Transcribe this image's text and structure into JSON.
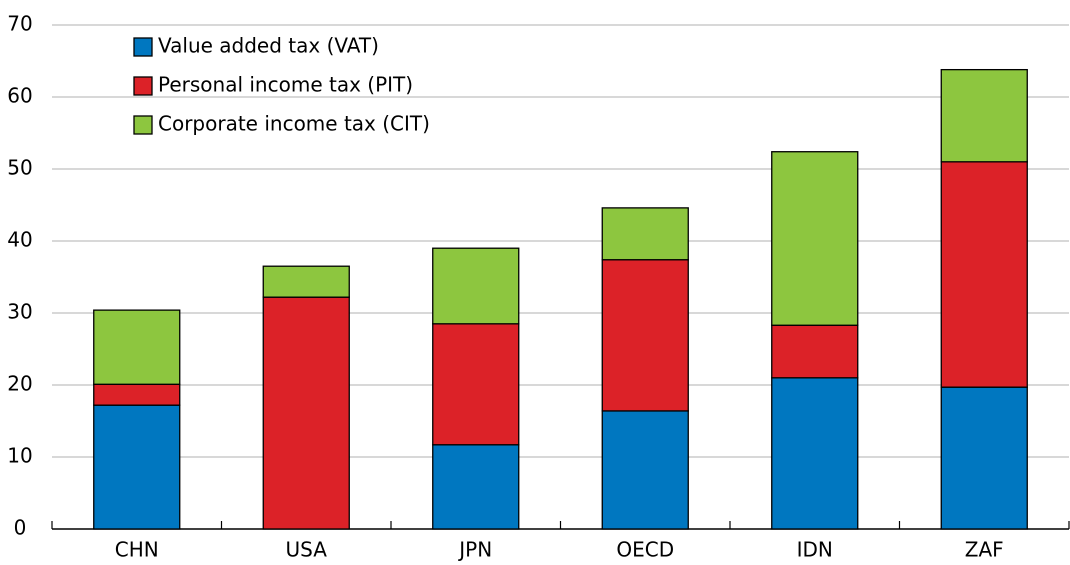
{
  "chart_data": {
    "type": "stacked_bar",
    "categories": [
      "CHN",
      "USA",
      "JPN",
      "OECD",
      "IDN",
      "ZAF"
    ],
    "series": [
      {
        "name": "Value added tax (VAT)",
        "color": "#0077c0",
        "values": [
          17.2,
          0,
          11.7,
          16.4,
          21.0,
          19.7
        ]
      },
      {
        "name": "Personal income tax (PIT)",
        "color": "#dc2228",
        "values": [
          2.9,
          32.2,
          16.8,
          21.0,
          7.3,
          31.3
        ]
      },
      {
        "name": "Corporate income tax (CIT)",
        "color": "#8dc63f",
        "values": [
          10.3,
          4.3,
          10.5,
          7.2,
          24.1,
          12.8
        ]
      }
    ],
    "ylim": [
      0,
      70
    ],
    "yticks": [
      0,
      10,
      20,
      30,
      40,
      50,
      60,
      70
    ],
    "grid": true,
    "legend": "top-left"
  }
}
